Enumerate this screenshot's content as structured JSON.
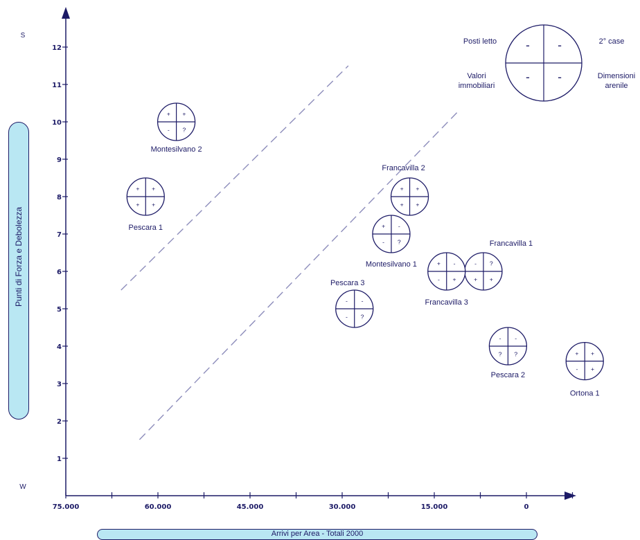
{
  "chart_data": {
    "type": "scatter",
    "xlabel": "Arrivi per Area - Totali 2000",
    "ylabel": "Punti di Forza e Debolezza",
    "x_reversed": true,
    "xlim": [
      75000,
      -12000
    ],
    "ylim": [
      0,
      12.7
    ],
    "x_ticks": [
      75000,
      60000,
      45000,
      30000,
      15000,
      0
    ],
    "x_tick_labels": [
      "75.000",
      "60.000",
      "45.000",
      "30.000",
      "15.000",
      "0"
    ],
    "y_ticks": [
      1,
      2,
      3,
      4,
      5,
      6,
      7,
      8,
      9,
      10,
      11,
      12
    ],
    "y_top_label": "S",
    "y_bottom_label": "W",
    "points": [
      {
        "name": "Montesilvano 2",
        "x": 57000,
        "y": 10,
        "cells": [
          "+",
          "+",
          "-",
          "?"
        ]
      },
      {
        "name": "Pescara 1",
        "x": 62000,
        "y": 8,
        "cells": [
          "+",
          "+",
          "+",
          "+"
        ]
      },
      {
        "name": "Francavilla 2",
        "x": 19000,
        "y": 8,
        "cells": [
          "+",
          "+",
          "+",
          "+"
        ]
      },
      {
        "name": "Montesilvano 1",
        "x": 22000,
        "y": 7,
        "cells": [
          "+",
          "-",
          "-",
          "?"
        ]
      },
      {
        "name": "Francavilla 1",
        "x": 7000,
        "y": 6,
        "cells": [
          "-",
          "?",
          "+",
          "+"
        ]
      },
      {
        "name": "Francavilla 3",
        "x": 13000,
        "y": 6,
        "cells": [
          "+",
          "-",
          "-",
          "+"
        ]
      },
      {
        "name": "Pescara 3",
        "x": 28000,
        "y": 5,
        "cells": [
          "-",
          "-",
          "-",
          "?"
        ]
      },
      {
        "name": "Pescara 2",
        "x": 3000,
        "y": 4,
        "cells": [
          "-",
          "-",
          "?",
          "?"
        ]
      },
      {
        "name": "Ortona 1",
        "x": -9500,
        "y": 3.6,
        "cells": [
          "+",
          "+",
          "-",
          "+"
        ]
      }
    ],
    "trend_lines": [
      {
        "from": [
          66000,
          5.5
        ],
        "to": [
          29000,
          11.5
        ]
      },
      {
        "from": [
          63000,
          1.5
        ],
        "to": [
          11000,
          10.3
        ]
      }
    ],
    "legend": {
      "cells": [
        "-",
        "-",
        "-",
        "-"
      ],
      "labels": [
        "Posti letto",
        "2° case",
        "Valori immobiliari",
        "Dimensioni arenile"
      ]
    }
  }
}
